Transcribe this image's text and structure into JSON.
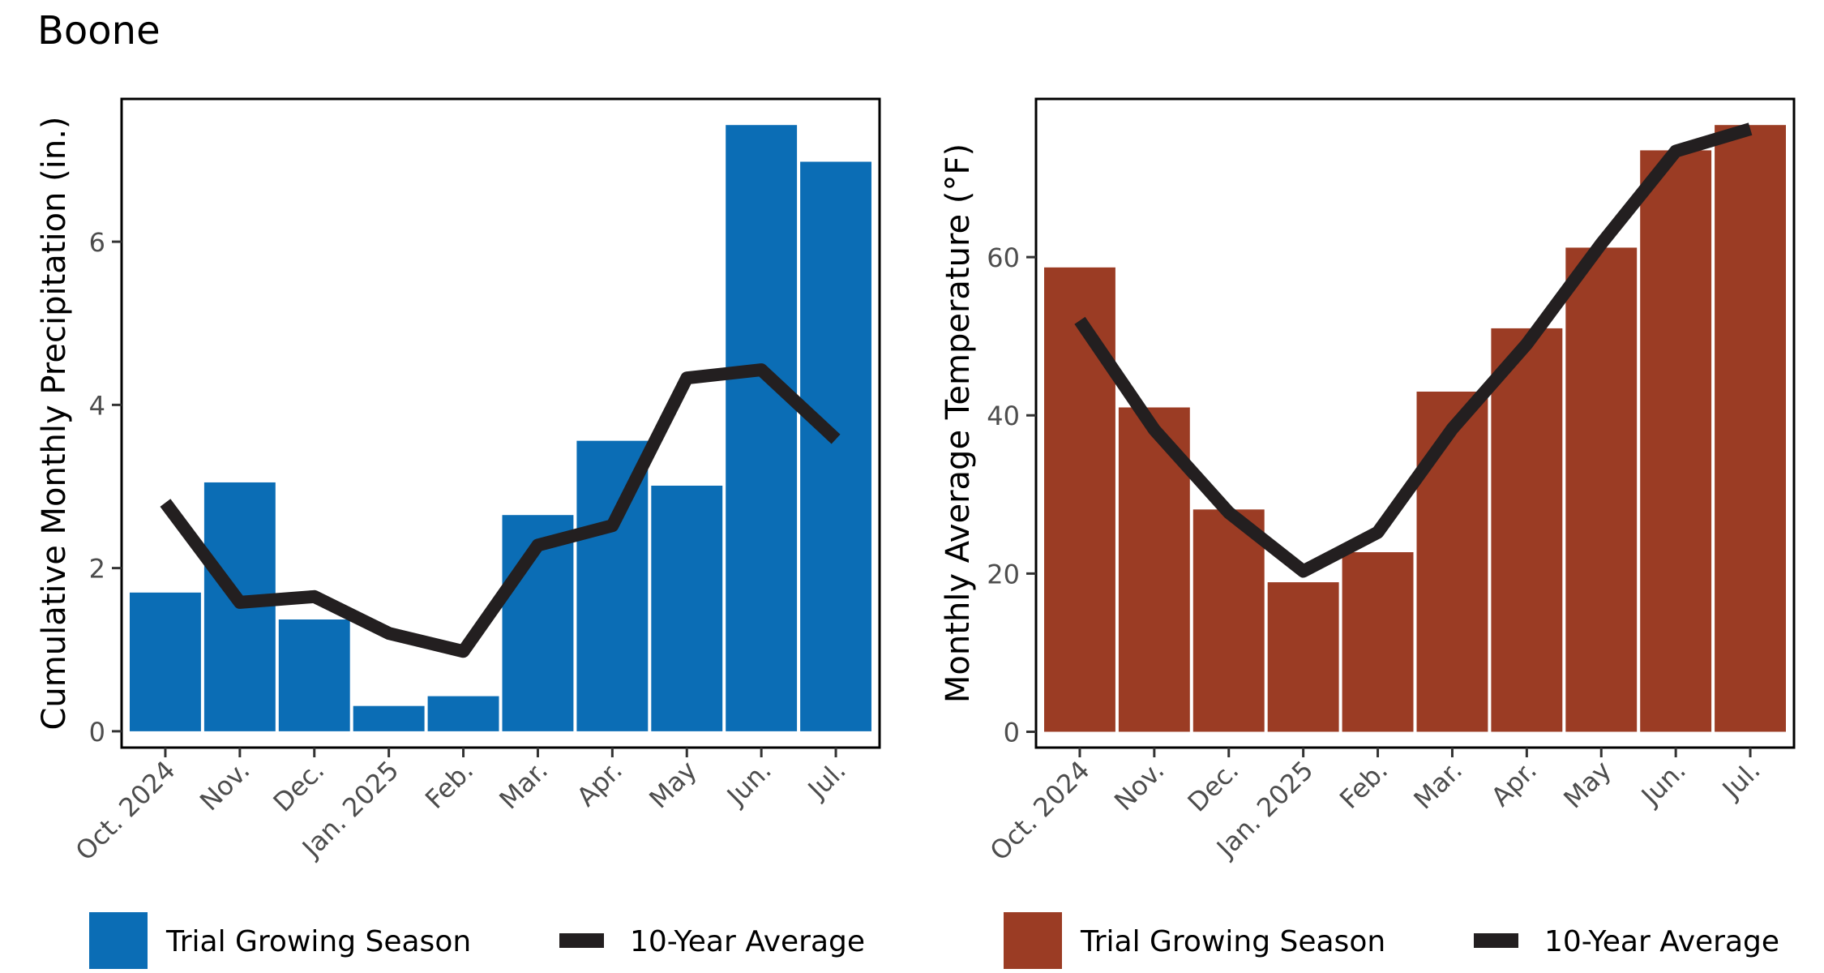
{
  "page": {
    "title": "Boone"
  },
  "chart_data": [
    {
      "type": "bar",
      "categories": [
        "Oct. 2024",
        "Nov.",
        "Dec.",
        "Jan. 2025",
        "Feb.",
        "Mar.",
        "Apr.",
        "May",
        "Jun.",
        "Jul."
      ],
      "series": [
        {
          "name": "Trial Growing Season",
          "kind": "bar",
          "values": [
            1.7,
            3.05,
            1.37,
            0.31,
            0.43,
            2.65,
            3.56,
            3.01,
            7.43,
            6.98
          ]
        },
        {
          "name": "10-Year Average",
          "kind": "line",
          "values": [
            2.8,
            1.58,
            1.65,
            1.2,
            0.98,
            2.28,
            2.52,
            4.33,
            4.43,
            3.58
          ]
        }
      ],
      "title": "",
      "xlabel": "",
      "ylabel": "Cumulative Monthly Precipitation (in.)",
      "ylim": [
        -0.2,
        7.75
      ],
      "yticks": [
        0,
        2,
        4,
        6
      ],
      "legend": {
        "placement": "bottom",
        "entries": [
          "Trial Growing Season",
          "10-Year Average"
        ]
      },
      "colors": {
        "bar": "#0b6db5",
        "line": "#231f20"
      },
      "grid": false
    },
    {
      "type": "bar",
      "categories": [
        "Oct. 2024",
        "Nov.",
        "Dec.",
        "Jan. 2025",
        "Feb.",
        "Mar.",
        "Apr.",
        "May",
        "Jun.",
        "Jul."
      ],
      "series": [
        {
          "name": "Trial Growing Season",
          "kind": "bar",
          "values": [
            58.7,
            41.0,
            28.1,
            18.9,
            22.7,
            43.0,
            51.0,
            61.2,
            73.5,
            76.7
          ]
        },
        {
          "name": "10-Year Average",
          "kind": "line",
          "values": [
            52.0,
            38.2,
            27.7,
            20.3,
            25.2,
            38.3,
            49.0,
            61.7,
            73.4,
            76.2
          ]
        }
      ],
      "title": "",
      "xlabel": "",
      "ylabel": "Monthly Average Temperature  (°F)",
      "ylim": [
        -2,
        80
      ],
      "yticks": [
        0,
        20,
        40,
        60
      ],
      "legend": {
        "placement": "bottom",
        "entries": [
          "Trial Growing Season",
          "10-Year Average"
        ]
      },
      "colors": {
        "bar": "#9b3c24",
        "line": "#231f20"
      },
      "grid": false
    }
  ]
}
